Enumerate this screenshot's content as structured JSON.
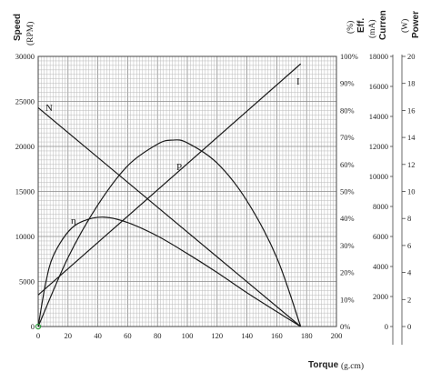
{
  "chart_data": {
    "type": "line",
    "x_axis": {
      "label": "Torque",
      "unit": "(g.cm)",
      "range": [
        0,
        200
      ],
      "ticks": [
        "0",
        "20",
        "40",
        "60",
        "80",
        "100",
        "120",
        "140",
        "160",
        "180",
        "200"
      ]
    },
    "y_axes": {
      "speed": {
        "label": "Speed",
        "unit": "(RPM)",
        "range": [
          0,
          30000
        ],
        "ticks": [
          "0",
          "5000",
          "10000",
          "15000",
          "20000",
          "25000",
          "30000"
        ]
      },
      "efficiency": {
        "label": "Eff.",
        "unit": "(%)",
        "range": [
          0,
          100
        ],
        "ticks": [
          "0%",
          "10%",
          "20%",
          "30%",
          "40%",
          "50%",
          "60%",
          "70%",
          "80%",
          "90%",
          "100%"
        ]
      },
      "current": {
        "label": "Curren",
        "unit": "(mA)",
        "range": [
          0,
          18000
        ],
        "ticks": [
          "0",
          "2000",
          "4000",
          "6000",
          "8000",
          "10000",
          "12000",
          "14000",
          "16000",
          "18000"
        ]
      },
      "power": {
        "label": "Power",
        "unit": "(W)",
        "range": [
          0,
          20
        ],
        "ticks": [
          "0",
          "2",
          "4",
          "6",
          "8",
          "10",
          "12",
          "14",
          "16",
          "18",
          "20"
        ]
      }
    },
    "grid": true,
    "series": [
      {
        "name": "N",
        "axis": "speed",
        "x": [
          0,
          20,
          40,
          60,
          80,
          100,
          120,
          140,
          160,
          176
        ],
        "y": [
          24300,
          21540,
          18780,
          16020,
          13260,
          10500,
          7740,
          4980,
          2220,
          0
        ]
      },
      {
        "name": "I",
        "axis": "current",
        "x": [
          0,
          20,
          40,
          60,
          80,
          100,
          120,
          140,
          160,
          176
        ],
        "y": [
          2100,
          3850,
          5600,
          7350,
          9100,
          10850,
          12600,
          14350,
          16100,
          17500
        ]
      },
      {
        "name": "P",
        "axis": "power",
        "x": [
          0,
          20,
          40,
          60,
          80,
          90,
          100,
          120,
          140,
          160,
          176
        ],
        "y": [
          0,
          5.1,
          9.0,
          11.9,
          13.5,
          13.8,
          13.6,
          12.1,
          9.3,
          5.1,
          0
        ]
      },
      {
        "name": "η",
        "axis": "efficiency",
        "x": [
          0,
          5,
          10,
          20,
          30,
          44,
          60,
          80,
          100,
          120,
          140,
          160,
          176
        ],
        "y": [
          0,
          16,
          26,
          35,
          39,
          40.5,
          38.5,
          33.5,
          27,
          20,
          12.5,
          5.5,
          0
        ]
      }
    ]
  }
}
